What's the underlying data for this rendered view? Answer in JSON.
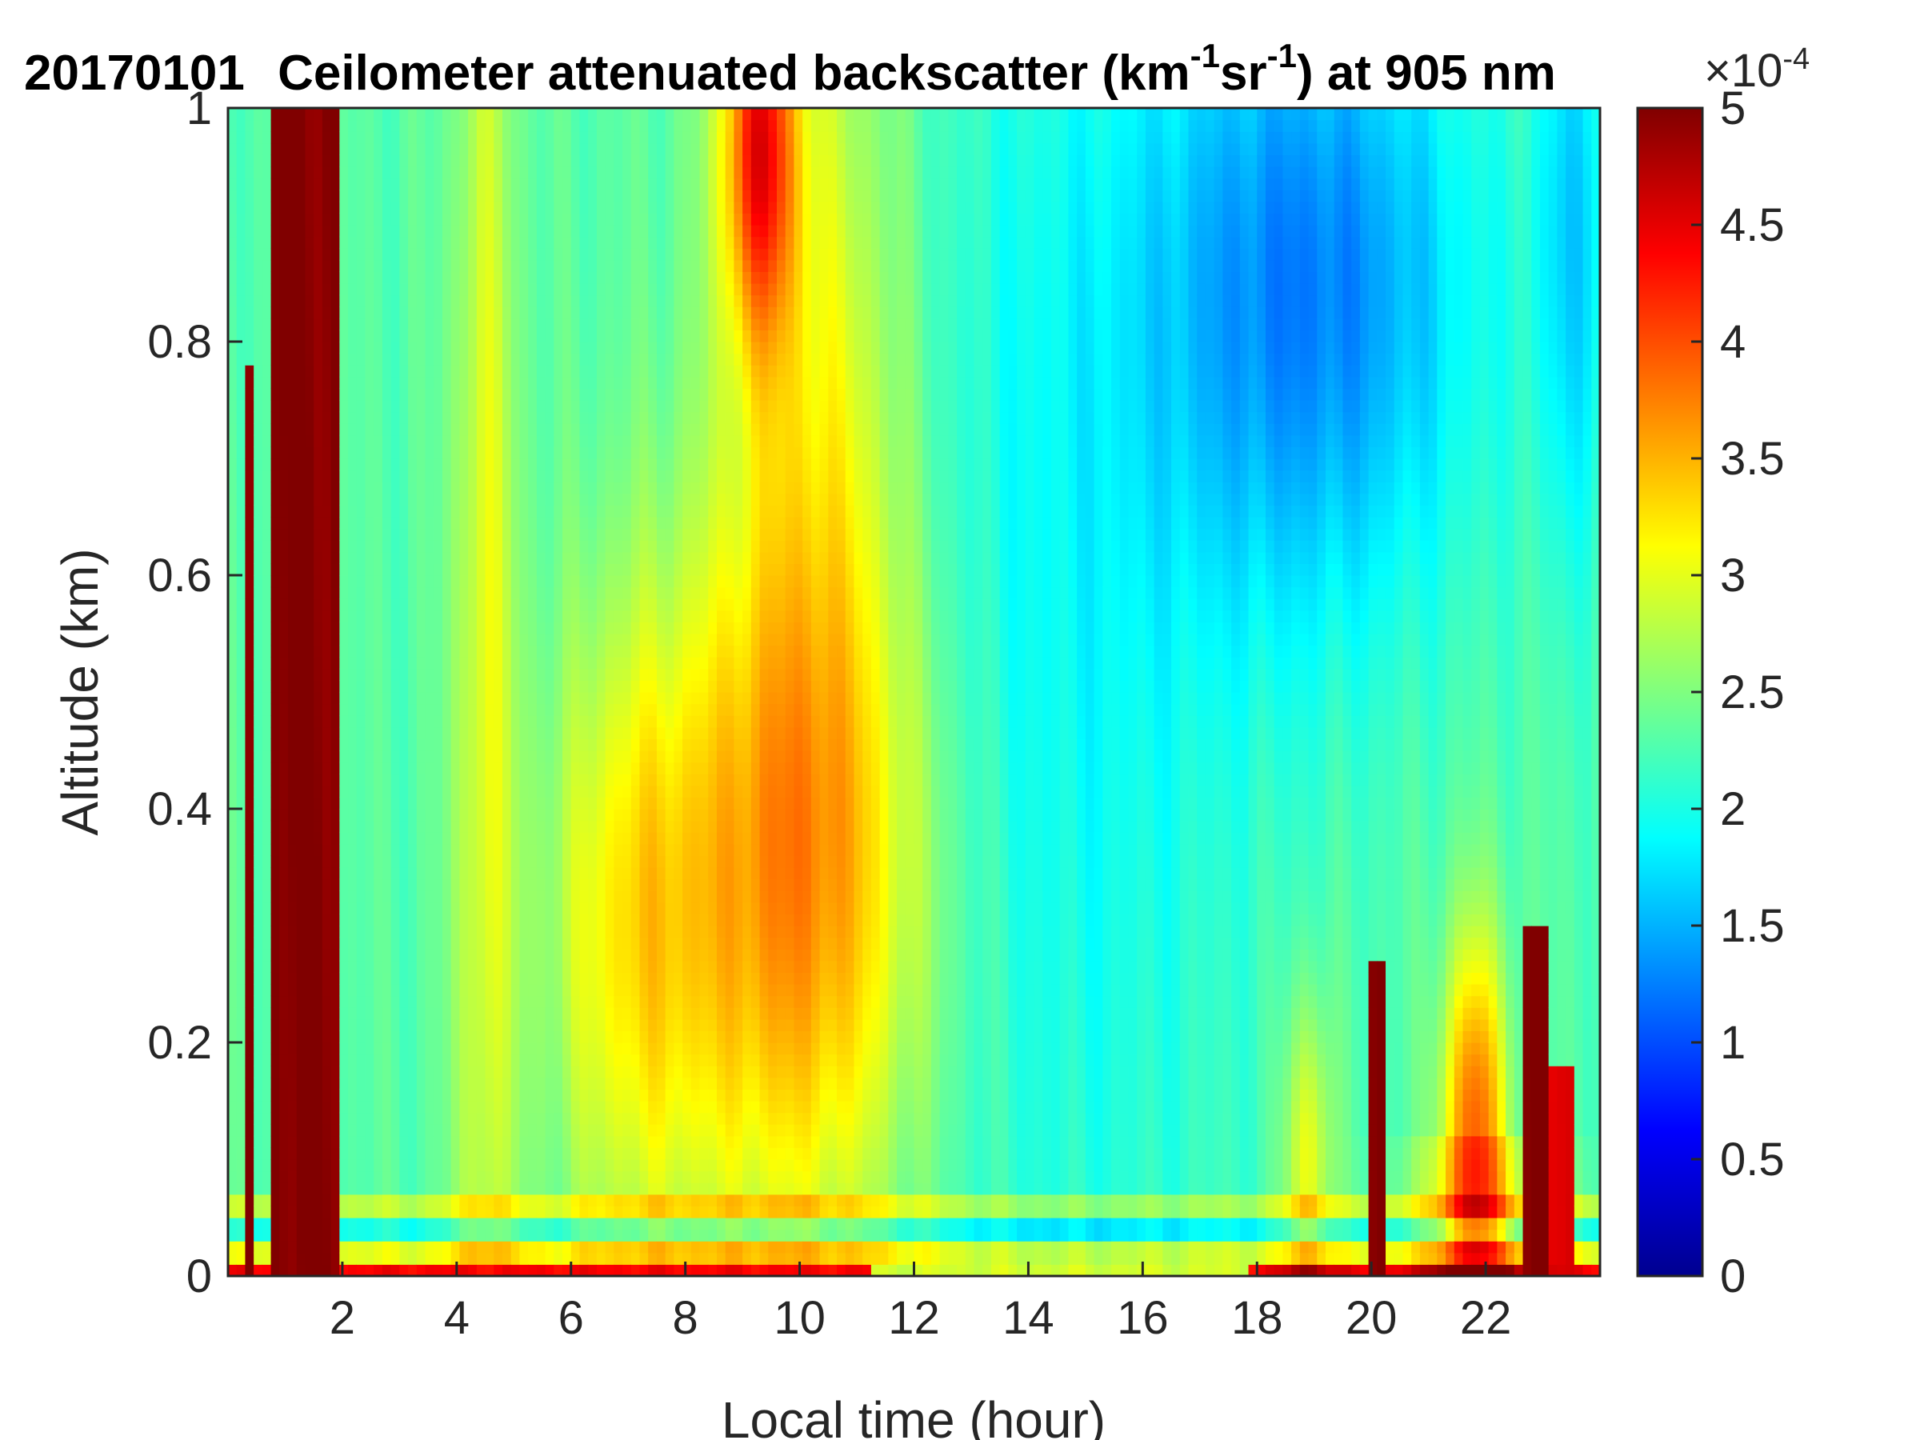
{
  "chart_data": {
    "type": "heatmap",
    "title": {
      "date": "20170101",
      "text": "Ceilometer attenuated backscatter (km",
      "sup1": "-1",
      "mid": "sr",
      "sup2": "-1",
      "end": ") at 905 nm"
    },
    "xlabel": "Local time (hour)",
    "ylabel": "Altitude (km)",
    "xlim": [
      0,
      24
    ],
    "ylim": [
      0,
      1
    ],
    "xticks": [
      2,
      4,
      6,
      8,
      10,
      12,
      14,
      16,
      18,
      20,
      22
    ],
    "yticks": [
      "0",
      "0.2",
      "0.4",
      "0.6",
      "0.8",
      "1"
    ],
    "colormap": "jet",
    "colorbar": {
      "clim": [
        0,
        5
      ],
      "ticks": [
        "0",
        "0.5",
        "1",
        "1.5",
        "2",
        "2.5",
        "3",
        "3.5",
        "4",
        "4.5",
        "5"
      ],
      "exponent_base": "×10",
      "exponent": "-4"
    },
    "features": [
      {
        "kind": "saturated_column",
        "t_start": 0.7,
        "t_end": 1.9,
        "alt_top": 1.0,
        "value": 5.0
      },
      {
        "kind": "saturated_column",
        "t_start": 0.25,
        "t_end": 0.45,
        "alt_top": 0.78,
        "value": 5.0
      },
      {
        "kind": "saturated_column",
        "t_start": 19.95,
        "t_end": 20.25,
        "alt_top": 0.27,
        "value": 5.0
      },
      {
        "kind": "saturated_column",
        "t_start": 22.7,
        "t_end": 23.05,
        "alt_top": 0.3,
        "value": 5.0
      },
      {
        "kind": "saturated_column",
        "t_start": 23.1,
        "t_end": 23.6,
        "alt_top": 0.18,
        "value": 4.5
      },
      {
        "kind": "elevated_plume",
        "t_center": 9.8,
        "alt_center": 0.3,
        "value": 3.6
      },
      {
        "kind": "elevated_plume",
        "t_center": 9.3,
        "alt_center": 0.95,
        "value": 4.5
      },
      {
        "kind": "low_region",
        "t_center": 19.0,
        "alt_center": 0.85,
        "value": 1.3
      }
    ]
  }
}
